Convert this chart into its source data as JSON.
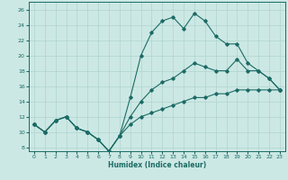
{
  "title": "",
  "xlabel": "Humidex (Indice chaleur)",
  "ylabel": "",
  "xlim": [
    -0.5,
    23.5
  ],
  "ylim": [
    7.5,
    27
  ],
  "yticks": [
    8,
    10,
    12,
    14,
    16,
    18,
    20,
    22,
    24,
    26
  ],
  "xticks": [
    0,
    1,
    2,
    3,
    4,
    5,
    6,
    7,
    8,
    9,
    10,
    11,
    12,
    13,
    14,
    15,
    16,
    17,
    18,
    19,
    20,
    21,
    22,
    23
  ],
  "bg_color": "#cce8e4",
  "line_color": "#1c6b65",
  "grid_color": "#afd4cf",
  "lines": [
    {
      "x": [
        0,
        1,
        2,
        3,
        4,
        5,
        6,
        7,
        8,
        9,
        10,
        11,
        12,
        13,
        14,
        15,
        16,
        17,
        18,
        19,
        20,
        21,
        22,
        23
      ],
      "y": [
        11,
        10,
        11.5,
        12,
        10.5,
        10,
        9,
        7.5,
        9.5,
        14.5,
        20,
        23,
        24.5,
        25,
        23.5,
        25.5,
        24.5,
        22.5,
        21.5,
        21.5,
        19,
        18,
        17,
        15.5
      ]
    },
    {
      "x": [
        0,
        1,
        2,
        3,
        4,
        5,
        6,
        7,
        8,
        9,
        10,
        11,
        12,
        13,
        14,
        15,
        16,
        17,
        18,
        19,
        20,
        21,
        22,
        23
      ],
      "y": [
        11,
        10,
        11.5,
        12,
        10.5,
        10,
        9,
        7.5,
        9.5,
        12,
        14,
        15.5,
        16.5,
        17,
        18,
        19,
        18.5,
        18,
        18,
        19.5,
        18,
        18,
        17,
        15.5
      ]
    },
    {
      "x": [
        0,
        1,
        2,
        3,
        4,
        5,
        6,
        7,
        8,
        9,
        10,
        11,
        12,
        13,
        14,
        15,
        16,
        17,
        18,
        19,
        20,
        21,
        22,
        23
      ],
      "y": [
        11,
        10,
        11.5,
        12,
        10.5,
        10,
        9,
        7.5,
        9.5,
        11,
        12,
        12.5,
        13,
        13.5,
        14,
        14.5,
        14.5,
        15,
        15,
        15.5,
        15.5,
        15.5,
        15.5,
        15.5
      ]
    }
  ]
}
